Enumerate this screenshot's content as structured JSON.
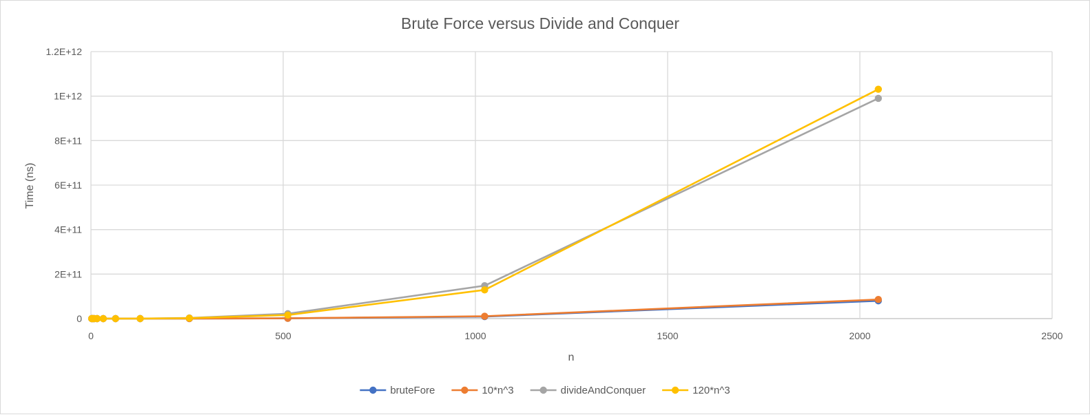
{
  "chart_data": {
    "type": "line",
    "title": "Brute Force versus Divide and Conquer",
    "xlabel": "n",
    "ylabel": "Time (ns)",
    "xlim": [
      0,
      2500
    ],
    "ylim": [
      0,
      1200000000000
    ],
    "x_ticks": [
      {
        "value": 0,
        "label": "0"
      },
      {
        "value": 500,
        "label": "500"
      },
      {
        "value": 1000,
        "label": "1000"
      },
      {
        "value": 1500,
        "label": "1500"
      },
      {
        "value": 2000,
        "label": "2000"
      },
      {
        "value": 2500,
        "label": "2500"
      }
    ],
    "y_ticks": [
      {
        "value": 0,
        "label": "0"
      },
      {
        "value": 200000000000,
        "label": "2E+11"
      },
      {
        "value": 400000000000,
        "label": "4E+11"
      },
      {
        "value": 600000000000,
        "label": "6E+11"
      },
      {
        "value": 800000000000,
        "label": "8E+11"
      },
      {
        "value": 1000000000000,
        "label": "1E+12"
      },
      {
        "value": 1200000000000,
        "label": "1.2E+12"
      }
    ],
    "grid": true,
    "legend_position": "bottom",
    "x": [
      2,
      4,
      8,
      16,
      32,
      64,
      128,
      256,
      512,
      1024,
      2048
    ],
    "series": [
      {
        "name": "bruteFore",
        "color": "#4472c4",
        "values": [
          1000,
          2000,
          6000,
          40000,
          300000,
          2000000,
          18000000,
          150000000,
          1200000000,
          9000000000,
          80000000000
        ]
      },
      {
        "name": "10*n^3",
        "color": "#ed7d31",
        "values": [
          80,
          640,
          5120,
          40960,
          327680,
          2621440,
          20971520,
          167772160,
          1342177280,
          10737418240,
          85899345920
        ]
      },
      {
        "name": "divideAndConquer",
        "color": "#a5a5a5",
        "values": [
          5000,
          30000,
          200000,
          1000000,
          8000000,
          50000000,
          350000000,
          2800000000,
          22000000000,
          148000000000,
          990000000000
        ]
      },
      {
        "name": "120*n^3",
        "color": "#ffc000",
        "values": [
          960,
          7680,
          61440,
          491520,
          3932160,
          31457280,
          251658240,
          2013265920,
          16106127360,
          128849018880,
          1030792151040
        ]
      }
    ]
  }
}
